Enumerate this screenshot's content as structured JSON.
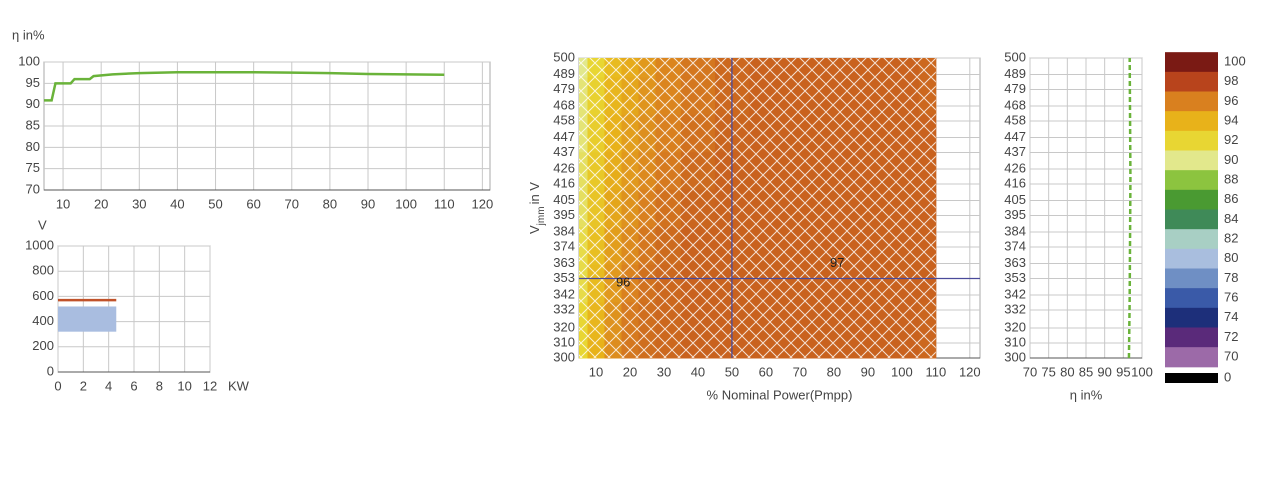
{
  "chart_data": [
    {
      "type": "line",
      "ylabel": "η in%",
      "color": "#6ab33a",
      "x": [
        5,
        7,
        8,
        12,
        13,
        17,
        18,
        23,
        30,
        40,
        50,
        60,
        70,
        80,
        90,
        100,
        110
      ],
      "y": [
        91,
        91,
        95,
        95,
        96,
        96,
        96.7,
        97.1,
        97.4,
        97.6,
        97.6,
        97.6,
        97.5,
        97.4,
        97.2,
        97.1,
        97.0
      ],
      "xlim": [
        5,
        122
      ],
      "ylim": [
        70,
        100
      ],
      "xticks": [
        10,
        20,
        30,
        40,
        50,
        60,
        70,
        80,
        90,
        100,
        110,
        120
      ],
      "yticks": [
        70,
        75,
        80,
        85,
        90,
        95,
        100
      ],
      "grid": true
    },
    {
      "type": "range",
      "ylabel": "V",
      "xlabel": "KW",
      "line": {
        "color": "#c0522a",
        "y": 570,
        "x": [
          0,
          4.6
        ]
      },
      "band": {
        "color": "#a9bde0",
        "y": [
          320,
          520
        ],
        "x": [
          0,
          4.6
        ]
      },
      "xlim": [
        0,
        12
      ],
      "ylim": [
        0,
        1000
      ],
      "xticks": [
        0,
        2,
        4,
        6,
        8,
        10,
        12
      ],
      "yticks": [
        0,
        200,
        400,
        600,
        800,
        1000
      ],
      "grid": true
    },
    {
      "type": "heatmap",
      "ylabel": {
        "main": "V",
        "sub": "jmm",
        "rest": "in V"
      },
      "xlabel": "% Nominal Power(Pmpp)",
      "x": [
        5,
        10,
        15,
        20,
        25,
        30,
        40,
        50,
        60,
        70,
        80,
        90,
        100,
        110
      ],
      "y": [
        300,
        325,
        350,
        375,
        400,
        425,
        450,
        475,
        500
      ],
      "z": [
        [
          92,
          94,
          95.5,
          96.3,
          96.6,
          96.8,
          97,
          97,
          97,
          97,
          97,
          97,
          97,
          96.8
        ],
        [
          92,
          93.8,
          95.3,
          96.2,
          96.6,
          96.8,
          97,
          97,
          97,
          97,
          97,
          97,
          97,
          96.9
        ],
        [
          91.5,
          93.5,
          95,
          95.9,
          96.5,
          96.8,
          97,
          97,
          97,
          97,
          97,
          97,
          97,
          97
        ],
        [
          91.5,
          93.3,
          94.8,
          95.6,
          96.3,
          96.7,
          97,
          97,
          97,
          97,
          97,
          97,
          97,
          97
        ],
        [
          91,
          93,
          94.5,
          95.3,
          96,
          96.5,
          96.9,
          97,
          97,
          97,
          97,
          97,
          97,
          97
        ],
        [
          91,
          92.8,
          94.2,
          95,
          95.6,
          96.2,
          96.7,
          97,
          97,
          97,
          97,
          97,
          97,
          97
        ],
        [
          90.5,
          92.5,
          94,
          94.8,
          95.4,
          96,
          96.5,
          96.9,
          97,
          97,
          97,
          97,
          97,
          97
        ],
        [
          90.5,
          92.3,
          93.8,
          94.5,
          95.2,
          95.8,
          96.3,
          96.8,
          97,
          97,
          97,
          97,
          97,
          96.8
        ],
        [
          90,
          92,
          93.5,
          94.3,
          95,
          95.8,
          96.3,
          96.8,
          97,
          97,
          97,
          97,
          97,
          96.8
        ]
      ],
      "crosshair": {
        "x": 50,
        "y": 353,
        "color": "#4a4a9a"
      },
      "annotations": [
        {
          "text": "96",
          "x": 18,
          "y": 350
        },
        {
          "text": "97",
          "x": 81,
          "y": 363
        }
      ],
      "xlim": [
        5,
        123
      ],
      "ylim": [
        300,
        500
      ],
      "xticks": [
        10,
        20,
        30,
        40,
        50,
        60,
        70,
        80,
        90,
        100,
        110,
        120
      ],
      "yticks": [
        300,
        310,
        320,
        332,
        342,
        353,
        363,
        374,
        384,
        395,
        405,
        416,
        426,
        437,
        447,
        458,
        468,
        479,
        489,
        500
      ],
      "grid": true
    },
    {
      "type": "line",
      "xlabel": "η in%",
      "color": "#6ab33a",
      "dashed": true,
      "x": [
        96.5,
        96.7,
        96.8,
        96.9,
        96.8,
        96.7
      ],
      "y": [
        300,
        340,
        380,
        420,
        460,
        500
      ],
      "xlim": [
        70,
        100
      ],
      "ylim": [
        300,
        500
      ],
      "xticks": [
        70,
        75,
        80,
        85,
        90,
        95,
        100
      ],
      "yticks": [
        300,
        310,
        320,
        332,
        342,
        353,
        363,
        374,
        384,
        395,
        405,
        416,
        426,
        437,
        447,
        458,
        468,
        479,
        489,
        500
      ],
      "grid": true
    },
    {
      "type": "colorbar",
      "ylim": [
        70,
        100
      ],
      "scale": [
        {
          "value": 100,
          "color": "#7a1a14"
        },
        {
          "value": 98,
          "color": "#b8441c"
        },
        {
          "value": 96,
          "color": "#d9801f"
        },
        {
          "value": 94,
          "color": "#e8b21a"
        },
        {
          "value": 92,
          "color": "#e8d633"
        },
        {
          "value": 90,
          "color": "#e2e88c"
        },
        {
          "value": 88,
          "color": "#8cc43f"
        },
        {
          "value": 86,
          "color": "#4a9a32"
        },
        {
          "value": 84,
          "color": "#3f8a58"
        },
        {
          "value": 82,
          "color": "#a8cfc4"
        },
        {
          "value": 80,
          "color": "#a9bede"
        },
        {
          "value": 78,
          "color": "#6f8fc4"
        },
        {
          "value": 76,
          "color": "#3a5aa8"
        },
        {
          "value": 74,
          "color": "#1d2f7a"
        },
        {
          "value": 72,
          "color": "#5a2a7a"
        },
        {
          "value": 70,
          "color": "#9c6aa8"
        },
        {
          "value": 0,
          "color": "#000000"
        }
      ]
    }
  ]
}
